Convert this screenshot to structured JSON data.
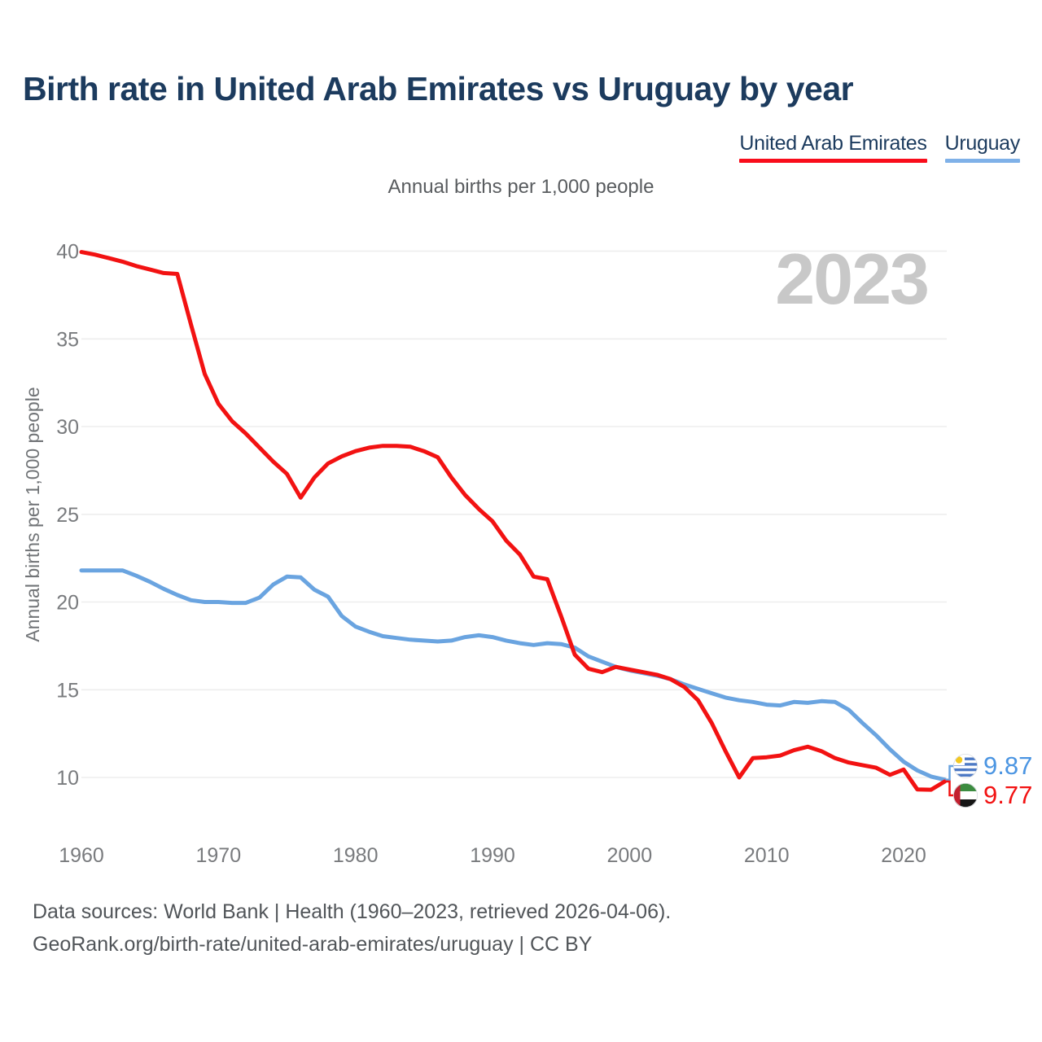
{
  "title": "Birth rate in United Arab Emirates vs Uruguay by year",
  "subtitle": "Annual births per 1,000 people",
  "y_axis_label": "Annual births per 1,000 people",
  "watermark": "2023",
  "legend": {
    "uae": {
      "label": "United Arab Emirates",
      "color": "#f21212"
    },
    "uruguay": {
      "label": "Uruguay",
      "color": "#7fb1e8"
    }
  },
  "end_labels": {
    "uruguay": {
      "series": "Uruguay",
      "value": "9.87",
      "color": "#4b95e2",
      "flag": "uruguay-flag"
    },
    "uae": {
      "series": "United Arab Emirates",
      "value": "9.77",
      "color": "#f21212",
      "flag": "uae-flag"
    }
  },
  "footer": {
    "line1": "Data sources: World Bank | Health (1960–2023, retrieved 2026-04-06).",
    "line2": "GeoRank.org/birth-rate/united-arab-emirates/uruguay | CC BY"
  },
  "chart_data": {
    "type": "line",
    "title": "Birth rate in United Arab Emirates vs Uruguay by year",
    "subtitle": "Annual births per 1,000 people",
    "ylabel": "Annual births per 1,000 people",
    "xlabel": "",
    "ylim": [
      10,
      40
    ],
    "yticks": [
      10,
      15,
      20,
      25,
      30,
      35,
      40
    ],
    "xticks": [
      1960,
      1970,
      1980,
      1990,
      2000,
      2010,
      2020
    ],
    "grid": "horizontal",
    "legend_position": "top-right",
    "x": [
      1960,
      1961,
      1962,
      1963,
      1964,
      1965,
      1966,
      1967,
      1968,
      1969,
      1970,
      1971,
      1972,
      1973,
      1974,
      1975,
      1976,
      1977,
      1978,
      1979,
      1980,
      1981,
      1982,
      1983,
      1984,
      1985,
      1986,
      1987,
      1988,
      1989,
      1990,
      1991,
      1992,
      1993,
      1994,
      1995,
      1996,
      1997,
      1998,
      1999,
      2000,
      2001,
      2002,
      2003,
      2004,
      2005,
      2006,
      2007,
      2008,
      2009,
      2010,
      2011,
      2012,
      2013,
      2014,
      2015,
      2016,
      2017,
      2018,
      2019,
      2020,
      2021,
      2022,
      2023
    ],
    "series": [
      {
        "name": "United Arab Emirates",
        "color": "#f21212",
        "values": [
          39.95,
          39.8,
          39.6,
          39.4,
          39.15,
          38.95,
          38.75,
          38.7,
          35.8,
          33.0,
          31.3,
          30.3,
          29.6,
          28.8,
          28.0,
          27.3,
          25.95,
          27.1,
          27.9,
          28.3,
          28.6,
          28.8,
          28.9,
          28.9,
          28.85,
          28.6,
          28.25,
          27.1,
          26.1,
          25.3,
          24.6,
          23.5,
          22.7,
          21.45,
          21.3,
          19.2,
          17.0,
          16.2,
          16.0,
          16.3,
          16.15,
          16.0,
          15.85,
          15.6,
          15.15,
          14.4,
          13.1,
          11.5,
          10.0,
          11.1,
          11.15,
          11.25,
          11.55,
          11.75,
          11.5,
          11.1,
          10.85,
          10.7,
          10.55,
          10.15,
          10.45,
          9.32,
          9.3,
          9.77
        ]
      },
      {
        "name": "Uruguay",
        "color": "#6aa4e0",
        "values": [
          21.8,
          21.8,
          21.8,
          21.8,
          21.5,
          21.15,
          20.75,
          20.4,
          20.1,
          20.0,
          20.0,
          19.95,
          19.95,
          20.25,
          21.0,
          21.45,
          21.4,
          20.7,
          20.3,
          19.2,
          18.6,
          18.3,
          18.05,
          17.95,
          17.85,
          17.8,
          17.75,
          17.8,
          18.0,
          18.1,
          18.0,
          17.8,
          17.65,
          17.55,
          17.65,
          17.6,
          17.4,
          16.9,
          16.6,
          16.3,
          16.1,
          15.95,
          15.8,
          15.6,
          15.3,
          15.05,
          14.8,
          14.55,
          14.4,
          14.3,
          14.15,
          14.1,
          14.3,
          14.25,
          14.35,
          14.3,
          13.85,
          13.1,
          12.4,
          11.6,
          10.9,
          10.4,
          10.05,
          9.87
        ]
      }
    ]
  }
}
